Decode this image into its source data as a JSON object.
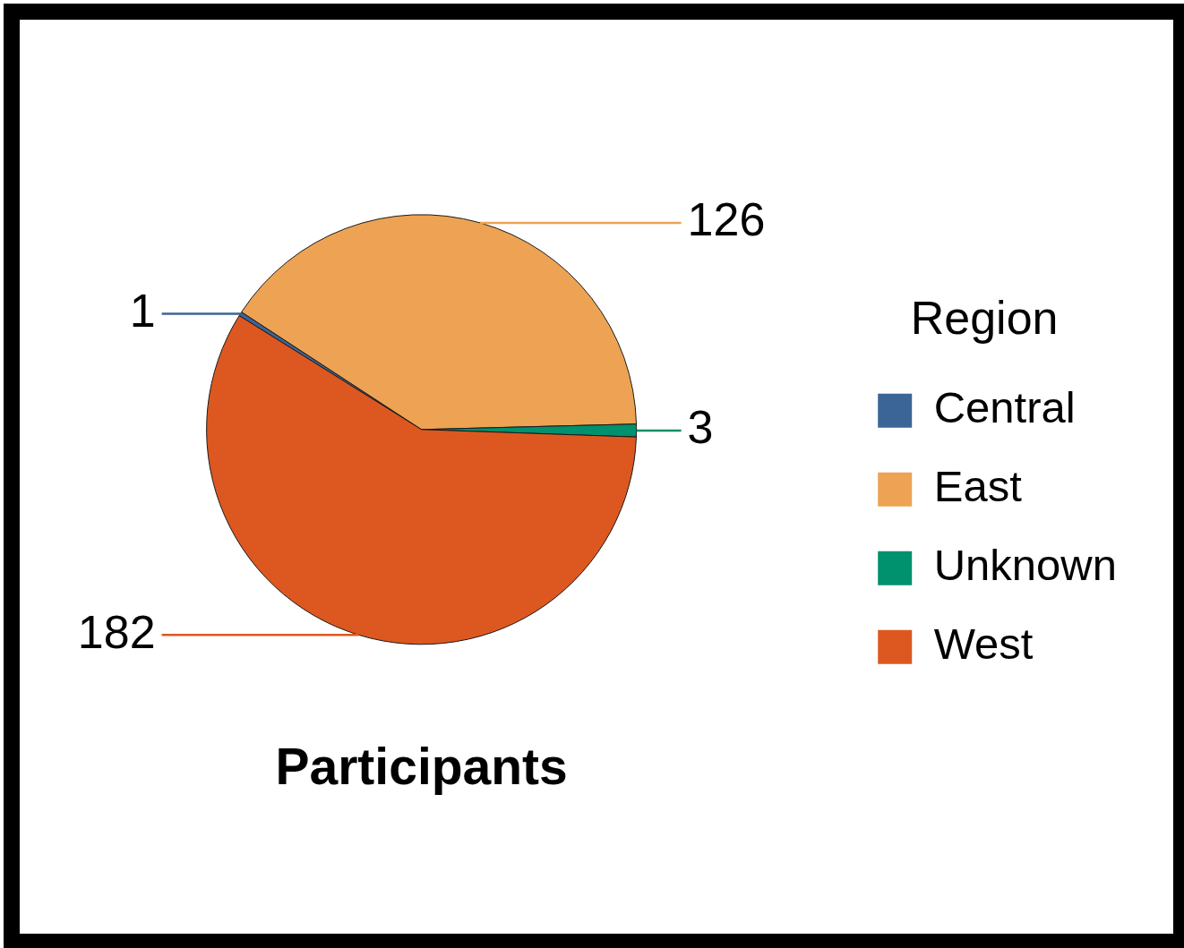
{
  "chart_data": {
    "type": "pie",
    "title": "Participants",
    "legend_title": "Region",
    "categories": [
      "Central",
      "East",
      "Unknown",
      "West"
    ],
    "values": [
      1,
      126,
      3,
      182
    ],
    "colors": [
      "#3b6597",
      "#eda353",
      "#00916e",
      "#dc5820"
    ],
    "data_labels": true,
    "legend": "right"
  }
}
